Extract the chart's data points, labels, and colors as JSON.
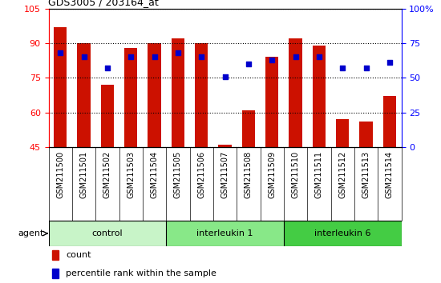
{
  "title": "GDS3005 / 203164_at",
  "samples": [
    "GSM211500",
    "GSM211501",
    "GSM211502",
    "GSM211503",
    "GSM211504",
    "GSM211505",
    "GSM211506",
    "GSM211507",
    "GSM211508",
    "GSM211509",
    "GSM211510",
    "GSM211511",
    "GSM211512",
    "GSM211513",
    "GSM211514"
  ],
  "count_values": [
    97,
    90,
    72,
    88,
    90,
    92,
    90,
    46,
    61,
    84,
    92,
    89,
    57,
    56,
    67
  ],
  "percentile_values": [
    68,
    65,
    57,
    65,
    65,
    68,
    65,
    51,
    60,
    63,
    65,
    65,
    57,
    57,
    61
  ],
  "groups": [
    {
      "label": "control",
      "start": 0,
      "end": 5,
      "color": "#c8f4c8"
    },
    {
      "label": "interleukin 1",
      "start": 5,
      "end": 10,
      "color": "#88e888"
    },
    {
      "label": "interleukin 6",
      "start": 10,
      "end": 15,
      "color": "#44cc44"
    }
  ],
  "ylim_left": [
    45,
    105
  ],
  "ylim_right": [
    0,
    100
  ],
  "yticks_left": [
    45,
    60,
    75,
    90,
    105
  ],
  "yticks_right": [
    0,
    25,
    50,
    75,
    100
  ],
  "bar_color": "#cc1100",
  "dot_color": "#0000cc",
  "tick_label_area_color": "#d0d0d0",
  "agent_label": "agent",
  "legend_count": "count",
  "legend_percentile": "percentile rank within the sample"
}
